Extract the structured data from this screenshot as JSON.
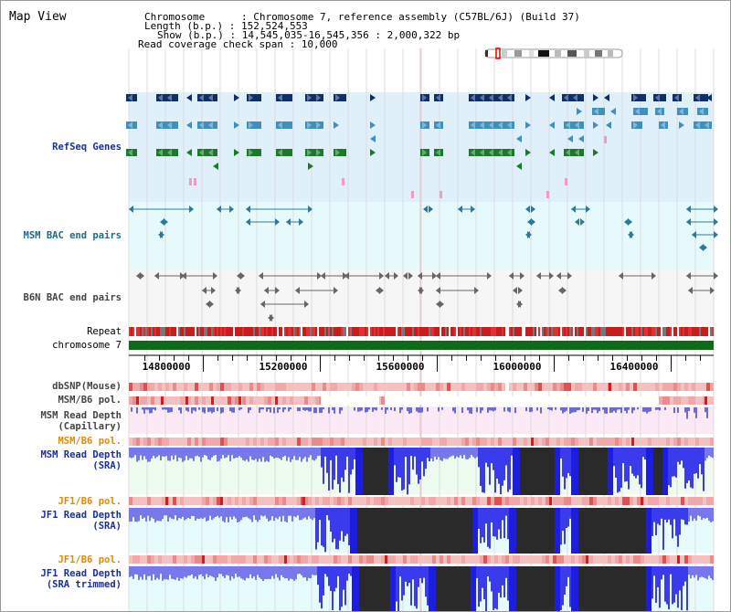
{
  "title": "Map View",
  "header": {
    "chromosome_line": "Chromosome      : Chromosome 7, reference assembly (C57BL/6J) (Build 37)",
    "length_line": "Length (b.p.) : 152,524,553",
    "show_line": "Show (b.p.) : 14,545,035-16,545,356 : 2,000,322 bp",
    "span_line": "Read coverage check span : 10,000"
  },
  "tracks": {
    "refseq": "RefSeq Genes",
    "msm_bac": "MSM BAC end pairs",
    "b6n_bac": "B6N BAC end pairs",
    "repeat": "Repeat",
    "chromosome": "chromosome 7",
    "dbsnp": "dbSNP(Mouse)",
    "msm_b6_pol": "MSM/B6 pol.",
    "msm_depth_cap_1": "MSM Read Depth",
    "msm_depth_cap_2": "(Capillary)",
    "msm_b6_pol_2": "MSM/B6 pol.",
    "msm_depth_sra_1": "MSM Read Depth",
    "msm_depth_sra_2": "(SRA)",
    "jf1_b6_pol": "JF1/B6 pol.",
    "jf1_depth_sra_1": "JF1 Read Depth",
    "jf1_depth_sra_2": "(SRA)",
    "jf1_b6_pol_2": "JF1/B6 pol.",
    "jf1_depth_trim_1": "JF1 Read Depth",
    "jf1_depth_trim_2": "(SRA trimmed)"
  },
  "axis": {
    "range": [
      14545035,
      16545356
    ],
    "ticks": [
      {
        "value": 14800000,
        "label": "14800000"
      },
      {
        "value": 15200000,
        "label": "15200000"
      },
      {
        "value": 15600000,
        "label": "15600000"
      },
      {
        "value": 16000000,
        "label": "16000000"
      },
      {
        "value": 16400000,
        "label": "16400000"
      }
    ]
  },
  "colors": {
    "refseq_bg": "#dff0fb",
    "msm_bac_bg": "#e6fafc",
    "b6n_bac_bg": "#f6f6f6",
    "gene_dark": "#0f2f6b",
    "gene_mid": "#3f8fbf",
    "gene_green": "#1a7a2a",
    "depth_blue": "#7777ee",
    "depth_dark": "#2a2a2a",
    "chrom_green": "#0d6b15",
    "repeat_red": "#cc1b1b"
  }
}
